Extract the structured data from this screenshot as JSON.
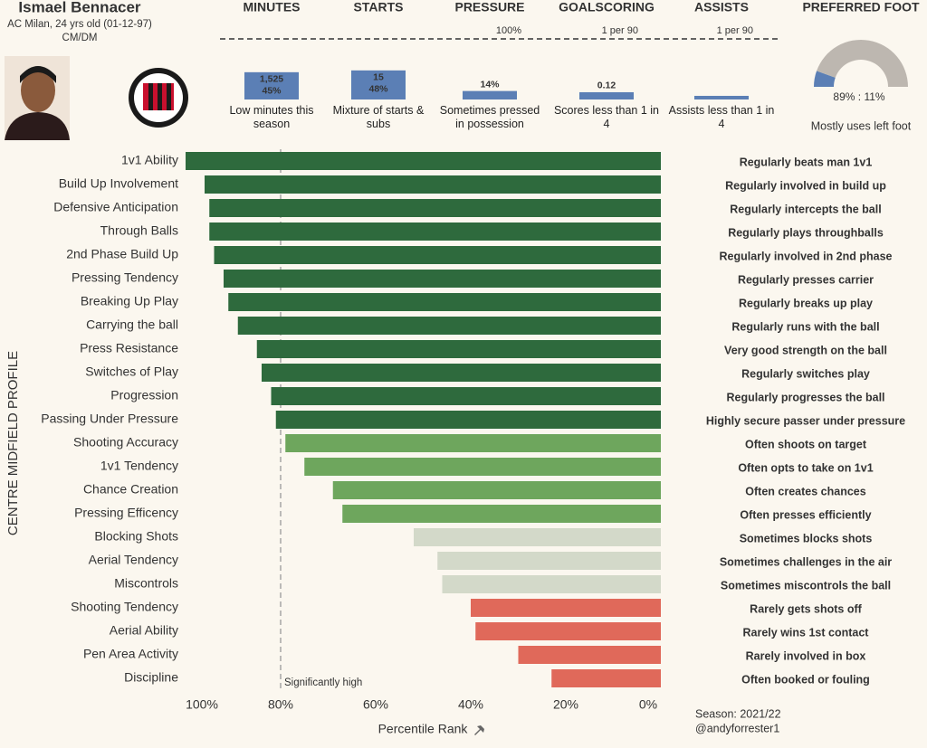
{
  "header": {
    "title": "Ismael Bennacer",
    "subtitle": "AC Milan, 24 yrs old (01-12-97)",
    "position": "CM/DM"
  },
  "summary": [
    {
      "title": "MINUTES",
      "value": 45,
      "value_label": "45%",
      "detail": "1,525",
      "caption": "Low minutes this season",
      "ylim": [
        0,
        100
      ],
      "color": "#5b7fb5"
    },
    {
      "title": "STARTS",
      "value": 48,
      "value_label": "48%",
      "detail": "15",
      "caption": "Mixture of starts & subs",
      "ylim": [
        0,
        100
      ],
      "color": "#5b7fb5"
    },
    {
      "title": "PRESSURE",
      "value": 14,
      "value_label": "14%",
      "caption": "Sometimes pressed in possession",
      "ylim": [
        0,
        100
      ],
      "ref_label": "100%",
      "color": "#5b7fb5"
    },
    {
      "title": "GOALSCORING",
      "value": 0.12,
      "value_label": "0.12",
      "caption": "Scores less than 1 in 4",
      "ylim": [
        0,
        1
      ],
      "ref_label": "1 per 90",
      "color": "#5b7fb5"
    },
    {
      "title": "ASSISTS",
      "value": 0.06,
      "caption": "Assists less than 1 in 4",
      "ylim": [
        0,
        1
      ],
      "ref_label": "1 per 90",
      "color": "#5b7fb5"
    }
  ],
  "foot": {
    "title": "PREFERRED FOOT",
    "left": 89,
    "right": 11,
    "label": "89% : 11%",
    "caption": "Mostly uses left foot",
    "colors": [
      "#bdb7b0",
      "#5b7fb5"
    ]
  },
  "chart_data": {
    "type": "bar",
    "orientation": "horizontal",
    "categories": [
      "1v1 Ability",
      "Build Up Involvement",
      "Defensive Anticipation",
      "Through Balls",
      "2nd Phase Build Up",
      "Pressing Tendency",
      "Breaking Up Play",
      "Carrying the ball",
      "Press Resistance",
      "Switches of Play",
      "Progression",
      "Passing Under Pressure",
      "Shooting Accuracy",
      "1v1 Tendency",
      "Chance Creation",
      "Pressing Efficency",
      "Blocking Shots",
      "Aerial Tendency",
      "Miscontrols",
      "Shooting Tendency",
      "Aerial Ability",
      "Pen Area Activity",
      "Discipline"
    ],
    "values": [
      100,
      96,
      95,
      95,
      94,
      92,
      91,
      89,
      85,
      84,
      82,
      81,
      79,
      75,
      69,
      67,
      52,
      47,
      46,
      40,
      39,
      30,
      23
    ],
    "colors": [
      "#2e6a3d",
      "#2e6a3d",
      "#2e6a3d",
      "#2e6a3d",
      "#2e6a3d",
      "#2e6a3d",
      "#2e6a3d",
      "#2e6a3d",
      "#2e6a3d",
      "#2e6a3d",
      "#2e6a3d",
      "#2e6a3d",
      "#6ea65d",
      "#6ea65d",
      "#6ea65d",
      "#6ea65d",
      "#d3d9c9",
      "#d3d9c9",
      "#d3d9c9",
      "#e0695a",
      "#e0695a",
      "#e0695a",
      "#e0695a"
    ],
    "annotations": [
      "Regularly beats man 1v1",
      "Regularly involved in build up",
      "Regularly intercepts the ball",
      "Regularly plays throughballs",
      "Regularly involved in 2nd phase",
      "Regularly presses carrier",
      "Regularly breaks up play",
      "Regularly runs with the ball",
      "Very good strength on the ball",
      "Regularly switches play",
      "Regularly progresses the ball",
      "Highly secure passer under pressure",
      "Often shoots on target",
      "Often opts to take on 1v1",
      "Often creates chances",
      "Often presses efficiently",
      "Sometimes blocks shots",
      "Sometimes challenges in the air",
      "Sometimes miscontrols the ball",
      "Rarely gets shots off",
      "Rarely wins 1st contact",
      "Rarely involved in box",
      "Often booked or fouling"
    ],
    "annotation_colors": [
      "#6ea65d",
      "#6ea65d",
      "#6ea65d",
      "#6ea65d",
      "#6ea65d",
      "#6ea65d",
      "#6ea65d",
      "#6ea65d",
      "#6ea65d",
      "#6ea65d",
      "#6ea65d",
      "#6ea65d",
      "#333333",
      "#333333",
      "#333333",
      "#333333",
      "#333333",
      "#333333",
      "#333333",
      "#333333",
      "#333333",
      "#333333",
      "#333333"
    ],
    "xlim": [
      100,
      0
    ],
    "xticks": [
      {
        "value": 100,
        "label": "100%"
      },
      {
        "value": 80,
        "label": "80%"
      },
      {
        "value": 60,
        "label": "60%"
      },
      {
        "value": 40,
        "label": "40%"
      },
      {
        "value": 20,
        "label": "20%"
      },
      {
        "value": 0,
        "label": "0%"
      }
    ],
    "xlabel": "Percentile Rank",
    "ylabel": "CENTRE MIDFIELD PROFILE",
    "reference_line": {
      "value": 80,
      "label": "Significantly high"
    }
  },
  "footer": {
    "season": "Season: 2021/22",
    "credit": "@andyforrester1"
  }
}
